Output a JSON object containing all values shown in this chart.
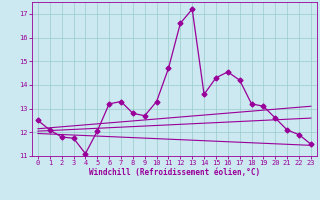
{
  "title": "",
  "xlabel": "Windchill (Refroidissement éolien,°C)",
  "bg_color": "#cce8f0",
  "line_color": "#990099",
  "grid_color": "#99cccc",
  "xlim": [
    -0.5,
    23.5
  ],
  "ylim": [
    11,
    17.5
  ],
  "yticks": [
    11,
    12,
    13,
    14,
    15,
    16,
    17
  ],
  "xticks": [
    0,
    1,
    2,
    3,
    4,
    5,
    6,
    7,
    8,
    9,
    10,
    11,
    12,
    13,
    14,
    15,
    16,
    17,
    18,
    19,
    20,
    21,
    22,
    23
  ],
  "series": {
    "main": {
      "x": [
        0,
        1,
        2,
        3,
        4,
        5,
        6,
        7,
        8,
        9,
        10,
        11,
        12,
        13,
        14,
        15,
        16,
        17,
        18,
        19,
        20,
        21,
        22,
        23
      ],
      "y": [
        12.5,
        12.1,
        11.8,
        11.75,
        11.1,
        12.05,
        13.2,
        13.3,
        12.8,
        12.7,
        13.3,
        14.7,
        16.6,
        17.2,
        13.6,
        14.3,
        14.55,
        14.2,
        13.2,
        13.1,
        12.6,
        12.1,
        11.9,
        11.5
      ],
      "markersize": 2.5,
      "linewidth": 0.9
    },
    "line1": {
      "x": [
        0,
        23
      ],
      "y": [
        11.95,
        11.45
      ],
      "linewidth": 0.8
    },
    "line2": {
      "x": [
        0,
        23
      ],
      "y": [
        12.05,
        12.6
      ],
      "linewidth": 0.8
    },
    "line3": {
      "x": [
        0,
        23
      ],
      "y": [
        12.15,
        13.1
      ],
      "linewidth": 0.8
    }
  },
  "tick_fontsize": 5.0,
  "xlabel_fontsize": 5.5
}
